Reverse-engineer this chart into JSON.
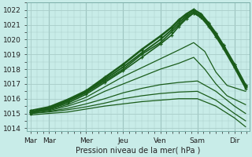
{
  "bg_color": "#c8ece8",
  "grid_color": "#a8ccc8",
  "line_color": "#1a5c1a",
  "xlabel_text": "Pression niveau de la mer( hPa )",
  "x_tick_labels": [
    "Mar",
    "Mar",
    "Mer",
    "Jeu",
    "Ven",
    "Sam",
    "Dir"
  ],
  "x_tick_positions": [
    0.0,
    0.5,
    1.5,
    2.5,
    3.5,
    4.5,
    5.5
  ],
  "ylim": [
    1013.8,
    1022.5
  ],
  "xlim": [
    -0.1,
    5.9
  ],
  "yticks": [
    1014,
    1015,
    1016,
    1017,
    1018,
    1019,
    1020,
    1021,
    1022
  ],
  "vlines": [
    0.5,
    1.5,
    2.5,
    3.5,
    4.5,
    5.5
  ],
  "lines": [
    {
      "x": [
        0.0,
        0.5,
        1.0,
        1.5,
        2.0,
        2.5,
        3.0,
        3.5,
        3.8,
        4.0,
        4.2,
        4.4,
        4.6,
        4.8,
        5.0,
        5.2,
        5.5,
        5.8
      ],
      "y": [
        1015.1,
        1015.3,
        1015.8,
        1016.4,
        1017.2,
        1018.0,
        1019.0,
        1019.8,
        1020.5,
        1021.0,
        1021.5,
        1021.8,
        1021.5,
        1021.0,
        1020.3,
        1019.5,
        1018.2,
        1016.8
      ],
      "marker": "+",
      "lw": 1.2
    },
    {
      "x": [
        0.0,
        0.5,
        1.0,
        1.5,
        2.0,
        2.5,
        3.0,
        3.5,
        3.8,
        4.0,
        4.2,
        4.4,
        4.6,
        4.8,
        5.0,
        5.2,
        5.5,
        5.8
      ],
      "y": [
        1015.1,
        1015.4,
        1015.9,
        1016.5,
        1017.4,
        1018.3,
        1019.3,
        1020.2,
        1020.8,
        1021.3,
        1021.7,
        1022.0,
        1021.7,
        1021.1,
        1020.4,
        1019.6,
        1018.3,
        1016.9
      ],
      "marker": "+",
      "lw": 1.2
    },
    {
      "x": [
        0.0,
        0.5,
        1.0,
        1.5,
        2.0,
        2.5,
        3.0,
        3.5,
        3.8,
        4.0,
        4.2,
        4.4,
        4.6,
        4.8,
        5.0,
        5.2,
        5.5,
        5.8
      ],
      "y": [
        1015.0,
        1015.3,
        1015.7,
        1016.3,
        1017.1,
        1017.9,
        1018.8,
        1019.7,
        1020.3,
        1020.9,
        1021.4,
        1021.8,
        1021.5,
        1020.9,
        1020.2,
        1019.4,
        1018.1,
        1016.7
      ],
      "marker": "+",
      "lw": 1.2
    },
    {
      "x": [
        0.0,
        0.5,
        1.0,
        1.5,
        2.0,
        2.5,
        3.0,
        3.5,
        3.8,
        4.0,
        4.2,
        4.4,
        4.6,
        4.8,
        5.0,
        5.2,
        5.5,
        5.8
      ],
      "y": [
        1015.1,
        1015.35,
        1015.85,
        1016.45,
        1017.3,
        1018.15,
        1019.1,
        1020.0,
        1020.65,
        1021.15,
        1021.6,
        1021.9,
        1021.6,
        1021.0,
        1020.3,
        1019.5,
        1018.2,
        1016.85
      ],
      "marker": "+",
      "lw": 1.4
    },
    {
      "x": [
        0.0,
        0.5,
        1.0,
        1.5,
        2.0,
        2.5,
        3.0,
        3.5,
        3.8,
        4.0,
        4.2,
        4.4,
        4.6,
        4.8,
        5.0,
        5.2,
        5.5,
        5.8
      ],
      "y": [
        1015.2,
        1015.45,
        1015.95,
        1016.55,
        1017.45,
        1018.35,
        1019.35,
        1020.25,
        1020.85,
        1021.35,
        1021.75,
        1022.05,
        1021.75,
        1021.15,
        1020.45,
        1019.65,
        1018.35,
        1016.95
      ],
      "marker": "+",
      "lw": 1.4
    },
    {
      "x": [
        0.0,
        0.5,
        1.0,
        1.5,
        2.0,
        2.5,
        3.0,
        3.5,
        4.0,
        4.4,
        4.7,
        5.0,
        5.3,
        5.8
      ],
      "y": [
        1015.1,
        1015.25,
        1015.6,
        1016.1,
        1016.8,
        1017.5,
        1018.1,
        1018.7,
        1019.3,
        1019.8,
        1019.2,
        1017.8,
        1016.9,
        1016.5
      ],
      "marker": null,
      "lw": 0.9
    },
    {
      "x": [
        0.0,
        0.5,
        1.0,
        1.5,
        2.0,
        2.5,
        3.0,
        3.5,
        4.0,
        4.4,
        4.7,
        5.0,
        5.3,
        5.8
      ],
      "y": [
        1015.1,
        1015.2,
        1015.5,
        1015.9,
        1016.5,
        1017.0,
        1017.5,
        1018.0,
        1018.4,
        1018.8,
        1018.0,
        1017.0,
        1016.2,
        1015.6
      ],
      "marker": null,
      "lw": 0.9
    },
    {
      "x": [
        0.0,
        0.5,
        1.0,
        1.5,
        2.0,
        2.5,
        3.0,
        3.5,
        4.0,
        4.5,
        5.0,
        5.5,
        5.8
      ],
      "y": [
        1015.0,
        1015.15,
        1015.35,
        1015.65,
        1016.0,
        1016.4,
        1016.7,
        1016.95,
        1017.1,
        1017.2,
        1016.5,
        1015.5,
        1015.0
      ],
      "marker": null,
      "lw": 0.9
    },
    {
      "x": [
        0.0,
        0.5,
        1.0,
        1.5,
        2.0,
        2.5,
        3.0,
        3.5,
        4.0,
        4.5,
        5.0,
        5.5,
        5.8
      ],
      "y": [
        1015.0,
        1015.1,
        1015.25,
        1015.45,
        1015.7,
        1016.0,
        1016.2,
        1016.35,
        1016.45,
        1016.5,
        1015.9,
        1015.0,
        1014.5
      ],
      "marker": null,
      "lw": 0.9
    },
    {
      "x": [
        0.0,
        0.5,
        1.0,
        1.5,
        2.0,
        2.5,
        3.0,
        3.5,
        4.0,
        4.5,
        5.0,
        5.5,
        5.8
      ],
      "y": [
        1014.9,
        1015.0,
        1015.1,
        1015.3,
        1015.5,
        1015.65,
        1015.8,
        1015.9,
        1016.0,
        1016.0,
        1015.5,
        1014.7,
        1014.1
      ],
      "marker": null,
      "lw": 0.9
    }
  ]
}
